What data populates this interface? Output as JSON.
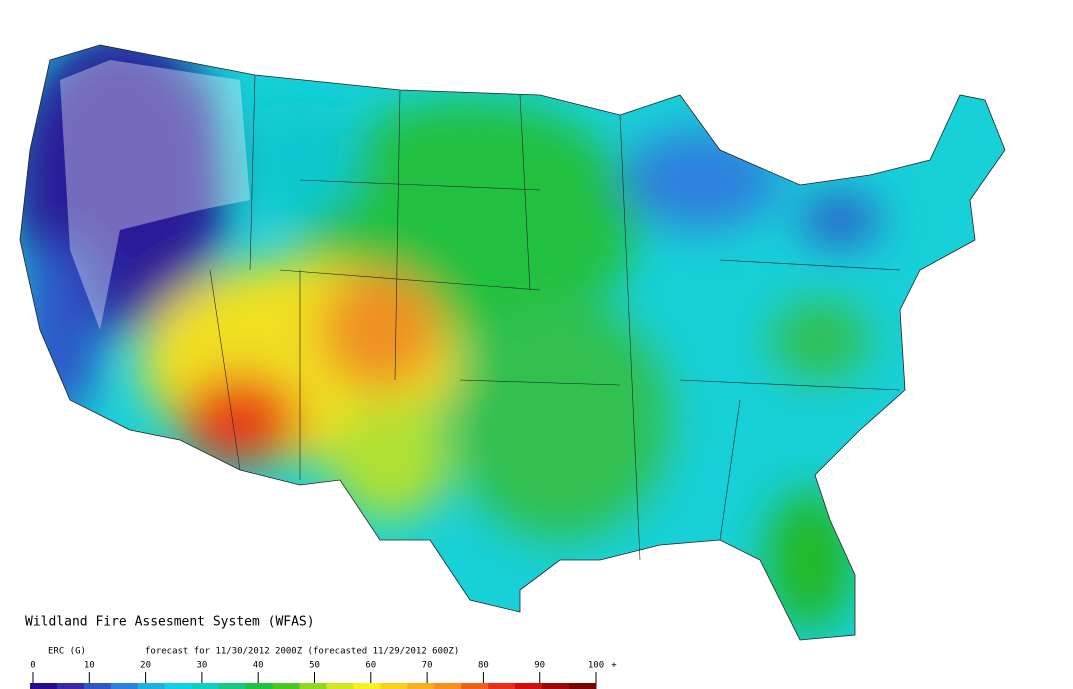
{
  "title": "Wildland Fire Assesment System (WFAS)",
  "legend": {
    "label": "ERC (G)",
    "ticks": [
      0,
      10,
      20,
      30,
      40,
      50,
      60,
      70,
      80,
      90,
      100
    ],
    "overflow": "+",
    "colors": [
      "#2a0a8c",
      "#3a2aa8",
      "#2f55c8",
      "#2f80dd",
      "#1fb0e0",
      "#10d0e8",
      "#10d0c0",
      "#18c880",
      "#20c040",
      "#48c820",
      "#90d820",
      "#d0e820",
      "#f8f020",
      "#f8d020",
      "#f8b020",
      "#f89020",
      "#f06018",
      "#e83018",
      "#d01010",
      "#a00808",
      "#780404"
    ]
  },
  "subtitle": "forecast for 11/30/2012 2000Z (forecasted 11/29/2012 600Z)"
}
